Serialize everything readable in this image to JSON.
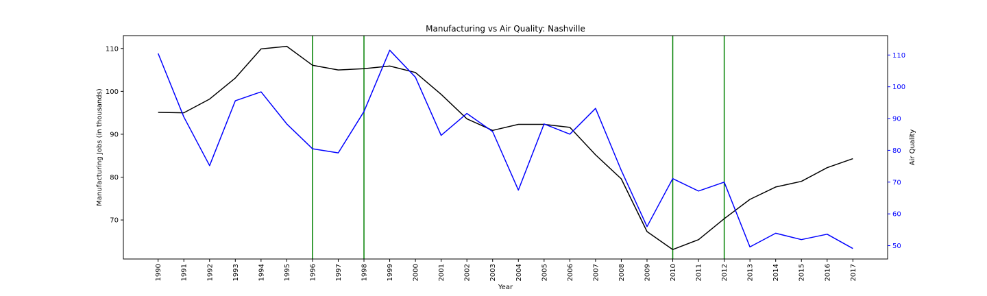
{
  "chart_data": {
    "type": "line",
    "title": "Manufacturing vs Air Quality: Nashville",
    "xlabel": "Year",
    "ylabel_left": "Manufacturing Jobs (in thousands)",
    "ylabel_right": "Air Quality",
    "x": [
      1990,
      1991,
      1992,
      1993,
      1994,
      1995,
      1996,
      1997,
      1998,
      1999,
      2000,
      2001,
      2002,
      2003,
      2004,
      2005,
      2006,
      2007,
      2008,
      2009,
      2010,
      2011,
      2012,
      2013,
      2014,
      2015,
      2016,
      2017
    ],
    "x_tick_labels": [
      "1990",
      "1991",
      "1992",
      "1993",
      "1994",
      "1995",
      "1996",
      "1997",
      "1998",
      "1999",
      "2000",
      "2001",
      "2002",
      "2003",
      "2004",
      "2005",
      "2006",
      "2007",
      "2008",
      "2009",
      "2010",
      "2011",
      "2012",
      "2013",
      "2014",
      "2015",
      "2016",
      "2017"
    ],
    "xlim": [
      1988.65,
      2018.35
    ],
    "y_left": {
      "ylim": [
        60.9,
        113.0
      ],
      "ticks": [
        70,
        80,
        90,
        100,
        110
      ],
      "tick_color": "#000000"
    },
    "y_right": {
      "ylim": [
        45.8,
        116.1
      ],
      "ticks": [
        50,
        60,
        70,
        80,
        90,
        100,
        110
      ],
      "tick_color": "#0000ff"
    },
    "series": [
      {
        "axis": "left",
        "color": "#000000",
        "values": [
          95.1,
          95.0,
          98.2,
          103.1,
          109.9,
          110.5,
          106.1,
          105.0,
          105.3,
          105.9,
          104.4,
          99.3,
          93.6,
          90.9,
          92.3,
          92.3,
          91.6,
          85.2,
          79.6,
          67.3,
          63.1,
          65.4,
          70.3,
          74.8,
          77.7,
          79.0,
          82.2,
          84.3
        ]
      },
      {
        "axis": "right",
        "color": "#0000ff",
        "values": [
          110.5,
          90.5,
          75.2,
          95.6,
          98.4,
          88.3,
          80.5,
          79.2,
          92.2,
          111.5,
          103.0,
          84.7,
          91.6,
          85.9,
          67.5,
          88.3,
          85.1,
          93.2,
          73.7,
          56.0,
          71.1,
          67.2,
          70.0,
          49.6,
          53.9,
          51.9,
          53.6,
          49.1
        ]
      }
    ],
    "vertical_lines": {
      "color": "#008000",
      "x": [
        1996,
        1998,
        2010,
        2012
      ]
    },
    "grid": false,
    "legend": "none"
  }
}
